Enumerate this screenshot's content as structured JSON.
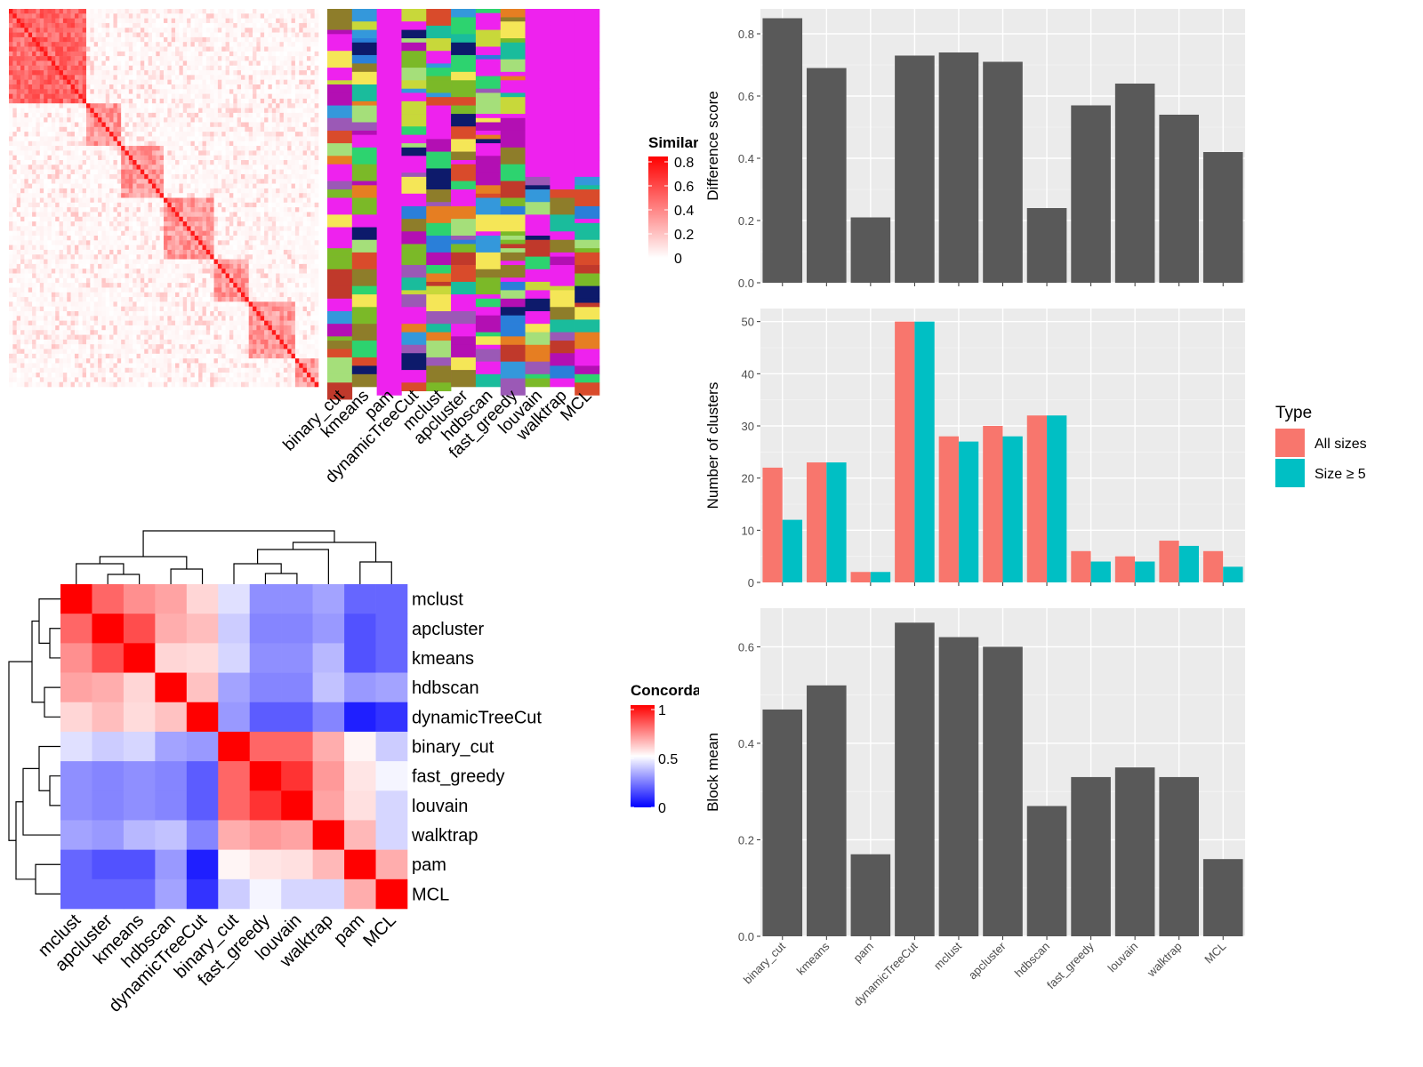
{
  "methods": [
    "binary_cut",
    "kmeans",
    "pam",
    "dynamicTreeCut",
    "mclust",
    "apcluster",
    "hdbscan",
    "fast_greedy",
    "louvain",
    "walktrap",
    "MCL"
  ],
  "similarity_legend": {
    "title": "Similarity",
    "ticks": [
      "0",
      "0.2",
      "0.4",
      "0.6",
      "0.8"
    ]
  },
  "concordance_legend": {
    "title": "Concordance",
    "ticks": [
      "0",
      "0.5",
      "1"
    ]
  },
  "concordance_order": [
    "mclust",
    "apcluster",
    "kmeans",
    "hdbscan",
    "dynamicTreeCut",
    "binary_cut",
    "fast_greedy",
    "louvain",
    "walktrap",
    "pam",
    "MCL"
  ],
  "chart_data": [
    {
      "type": "heatmap",
      "name": "similarity_matrix",
      "legend_title": "Similarity",
      "range": [
        0,
        0.8
      ],
      "colors": {
        "low": "#ffffff",
        "high": "#ff0000"
      }
    },
    {
      "type": "heatmap",
      "name": "cluster_assignments",
      "columns": [
        "binary_cut",
        "kmeans",
        "pam",
        "dynamicTreeCut",
        "mclust",
        "apcluster",
        "hdbscan",
        "fast_greedy",
        "louvain",
        "walktrap",
        "MCL"
      ]
    },
    {
      "type": "heatmap",
      "name": "concordance_matrix",
      "legend_title": "Concordance",
      "range": [
        0,
        1
      ],
      "colors": {
        "low": "#0000ff",
        "mid": "#ffffff",
        "high": "#ff0000"
      },
      "rows": [
        "mclust",
        "apcluster",
        "kmeans",
        "hdbscan",
        "dynamicTreeCut",
        "binary_cut",
        "fast_greedy",
        "louvain",
        "walktrap",
        "pam",
        "MCL"
      ],
      "columns": [
        "mclust",
        "apcluster",
        "kmeans",
        "hdbscan",
        "dynamicTreeCut",
        "binary_cut",
        "fast_greedy",
        "louvain",
        "walktrap",
        "pam",
        "MCL"
      ],
      "values": [
        [
          1.0,
          0.8,
          0.72,
          0.68,
          0.58,
          0.44,
          0.28,
          0.28,
          0.32,
          0.2,
          0.2
        ],
        [
          0.8,
          1.0,
          0.85,
          0.66,
          0.63,
          0.4,
          0.26,
          0.26,
          0.3,
          0.16,
          0.2
        ],
        [
          0.72,
          0.85,
          1.0,
          0.58,
          0.57,
          0.42,
          0.28,
          0.28,
          0.36,
          0.16,
          0.2
        ],
        [
          0.68,
          0.66,
          0.58,
          1.0,
          0.62,
          0.32,
          0.26,
          0.26,
          0.38,
          0.3,
          0.32
        ],
        [
          0.58,
          0.63,
          0.57,
          0.62,
          1.0,
          0.3,
          0.18,
          0.18,
          0.26,
          0.06,
          0.1
        ],
        [
          0.44,
          0.4,
          0.42,
          0.32,
          0.3,
          1.0,
          0.8,
          0.8,
          0.66,
          0.52,
          0.4
        ],
        [
          0.28,
          0.26,
          0.28,
          0.26,
          0.18,
          0.8,
          1.0,
          0.9,
          0.7,
          0.55,
          0.48
        ],
        [
          0.28,
          0.26,
          0.28,
          0.26,
          0.18,
          0.8,
          0.9,
          1.0,
          0.68,
          0.56,
          0.42
        ],
        [
          0.32,
          0.3,
          0.36,
          0.38,
          0.26,
          0.66,
          0.7,
          0.68,
          1.0,
          0.64,
          0.42
        ],
        [
          0.2,
          0.16,
          0.16,
          0.3,
          0.06,
          0.52,
          0.55,
          0.56,
          0.64,
          1.0,
          0.66
        ],
        [
          0.2,
          0.2,
          0.2,
          0.32,
          0.1,
          0.4,
          0.48,
          0.42,
          0.42,
          0.66,
          1.0
        ]
      ]
    },
    {
      "type": "bar",
      "categories": [
        "binary_cut",
        "kmeans",
        "pam",
        "dynamicTreeCut",
        "mclust",
        "apcluster",
        "hdbscan",
        "fast_greedy",
        "louvain",
        "walktrap",
        "MCL"
      ],
      "values": [
        0.85,
        0.69,
        0.21,
        0.73,
        0.74,
        0.71,
        0.24,
        0.57,
        0.64,
        0.54,
        0.42
      ],
      "ylabel": "Difference score",
      "ylim": [
        0,
        0.88
      ],
      "yticks": [
        "0.0",
        "0.2",
        "0.4",
        "0.6",
        "0.8"
      ],
      "yticks_values": [
        0,
        0.2,
        0.4,
        0.6,
        0.8
      ],
      "bar_color": "#595959",
      "grid": true
    },
    {
      "type": "bar",
      "categories": [
        "binary_cut",
        "kmeans",
        "pam",
        "dynamicTreeCut",
        "mclust",
        "apcluster",
        "hdbscan",
        "fast_greedy",
        "louvain",
        "walktrap",
        "MCL"
      ],
      "series": [
        {
          "name": "All sizes",
          "values": [
            22,
            23,
            2,
            50,
            28,
            30,
            32,
            6,
            5,
            8,
            6
          ],
          "color": "#F8766D"
        },
        {
          "name": "Size ≥ 5",
          "values": [
            12,
            23,
            2,
            50,
            27,
            28,
            32,
            4,
            4,
            7,
            3
          ],
          "color": "#00BFC4"
        }
      ],
      "ylabel": "Number of clusters",
      "ylim": [
        0,
        52.5
      ],
      "yticks": [
        "0",
        "10",
        "20",
        "30",
        "40",
        "50"
      ],
      "yticks_values": [
        0,
        10,
        20,
        30,
        40,
        50
      ],
      "legend_title": "Type",
      "legend_position": "right",
      "grid": true
    },
    {
      "type": "bar",
      "categories": [
        "binary_cut",
        "kmeans",
        "pam",
        "dynamicTreeCut",
        "mclust",
        "apcluster",
        "hdbscan",
        "fast_greedy",
        "louvain",
        "walktrap",
        "MCL"
      ],
      "values": [
        0.47,
        0.52,
        0.17,
        0.65,
        0.62,
        0.6,
        0.27,
        0.33,
        0.35,
        0.33,
        0.16
      ],
      "ylabel": "Block mean",
      "ylim": [
        0,
        0.68
      ],
      "yticks": [
        "0.0",
        "0.2",
        "0.4",
        "0.6"
      ],
      "yticks_values": [
        0,
        0.2,
        0.4,
        0.6
      ],
      "bar_color": "#595959",
      "grid": true
    }
  ]
}
